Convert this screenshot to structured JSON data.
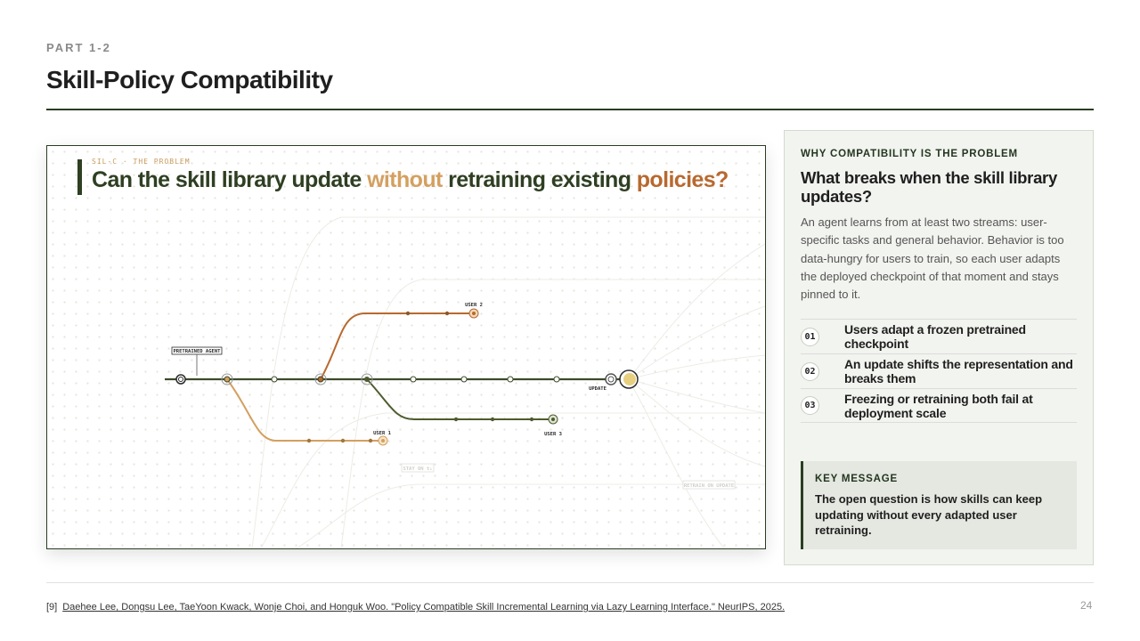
{
  "header": {
    "part": "PART 1-2",
    "title": "Skill-Policy Compatibility"
  },
  "figure": {
    "kicker": "SIL-C · THE PROBLEM",
    "title_parts": [
      "Can the skill library update ",
      "without",
      " retraining existing ",
      "policies?"
    ],
    "labels": {
      "pretrained": "PRETRAINED AGENT",
      "user1": "USER 1",
      "user2": "USER 2",
      "user3": "USER 3",
      "update": "UPDATE",
      "stay": "STAY ON t₁",
      "retrain": "RETRAIN ON UPDATE"
    }
  },
  "panel": {
    "kicker": "WHY COMPATIBILITY IS THE PROBLEM",
    "heading": "What breaks when the skill library updates?",
    "body": "An agent learns from at least two streams: user-specific tasks and general behavior. Behavior is too data-hungry for users to train, so each user adapts the deployed checkpoint of that moment and stays pinned to it.",
    "items": [
      {
        "num": "01",
        "text": "Users adapt a frozen pretrained checkpoint"
      },
      {
        "num": "02",
        "text": "An update shifts the representation and breaks them"
      },
      {
        "num": "03",
        "text": "Freezing or retraining both fail at deployment scale"
      }
    ],
    "key_message": {
      "label": "KEY MESSAGE",
      "text": "The open question is how skills can keep updating without every adapted user retraining."
    }
  },
  "footer": {
    "ref": "[9]",
    "citation": "Daehee Lee, Dongsu Lee, TaeYoon Kwack, Wonje Choi, and Honguk Woo. \"Policy Compatible Skill Incremental Learning via Lazy Learning Interface.\" NeurIPS, 2025.",
    "page": "24"
  }
}
